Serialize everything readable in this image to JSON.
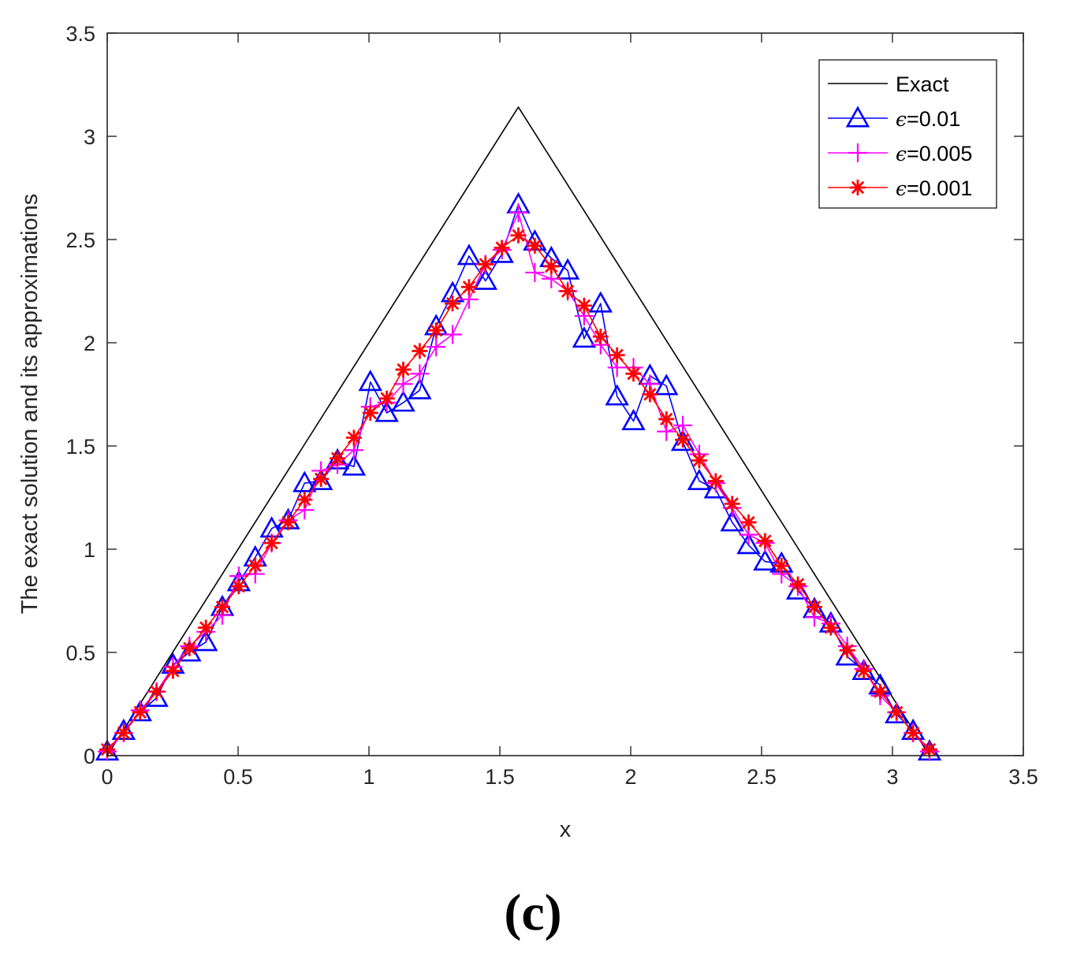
{
  "chart_data": {
    "type": "line",
    "xlabel": "x",
    "ylabel": "The exact solution and its approximations",
    "xlim": [
      0,
      3.5
    ],
    "ylim": [
      0,
      3.5
    ],
    "xticks": [
      "0",
      "0.5",
      "1",
      "1.5",
      "2",
      "2.5",
      "3",
      "3.5"
    ],
    "yticks": [
      "0",
      "0.5",
      "1",
      "1.5",
      "2",
      "2.5",
      "3",
      "3.5"
    ],
    "grid": false,
    "legend_position": "top-right",
    "panel_label": "(c)",
    "series": [
      {
        "name": "Exact",
        "color": "#000000",
        "marker": "none",
        "x": [
          0,
          1.5708,
          3.1416
        ],
        "y": [
          0,
          3.1416,
          0
        ]
      },
      {
        "name": "ϵ=0.01",
        "color": "#0000ff",
        "marker": "triangle",
        "x": [
          0,
          0.0628,
          0.1257,
          0.1885,
          0.2513,
          0.3142,
          0.377,
          0.4398,
          0.5027,
          0.5655,
          0.6283,
          0.6912,
          0.754,
          0.8168,
          0.8796,
          0.9425,
          1.0053,
          1.0681,
          1.131,
          1.1938,
          1.2566,
          1.3195,
          1.3823,
          1.4451,
          1.508,
          1.5708,
          1.6336,
          1.6965,
          1.7593,
          1.8221,
          1.885,
          1.9478,
          2.0106,
          2.0735,
          2.1363,
          2.1991,
          2.2619,
          2.3248,
          2.3876,
          2.4504,
          2.5133,
          2.5761,
          2.6389,
          2.7018,
          2.7646,
          2.8274,
          2.8903,
          2.9531,
          3.0159,
          3.0788,
          3.1416
        ],
        "y": [
          0.02,
          0.12,
          0.21,
          0.28,
          0.44,
          0.5,
          0.55,
          0.72,
          0.84,
          0.96,
          1.1,
          1.14,
          1.32,
          1.33,
          1.43,
          1.4,
          1.81,
          1.66,
          1.71,
          1.77,
          2.08,
          2.24,
          2.42,
          2.3,
          2.43,
          2.67,
          2.49,
          2.41,
          2.35,
          2.02,
          2.19,
          1.74,
          1.62,
          1.84,
          1.79,
          1.52,
          1.33,
          1.29,
          1.13,
          1.02,
          0.94,
          0.93,
          0.8,
          0.71,
          0.64,
          0.48,
          0.41,
          0.34,
          0.2,
          0.12,
          0.02
        ]
      },
      {
        "name": "ϵ=0.005",
        "color": "#ff00ff",
        "marker": "plus",
        "x": [
          0,
          0.0628,
          0.1257,
          0.1885,
          0.2513,
          0.3142,
          0.377,
          0.4398,
          0.5027,
          0.5655,
          0.6283,
          0.6912,
          0.754,
          0.8168,
          0.8796,
          0.9425,
          1.0053,
          1.0681,
          1.131,
          1.1938,
          1.2566,
          1.3195,
          1.3823,
          1.4451,
          1.508,
          1.5708,
          1.6336,
          1.6965,
          1.7593,
          1.8221,
          1.885,
          1.9478,
          2.0106,
          2.0735,
          2.1363,
          2.1991,
          2.2619,
          2.3248,
          2.3876,
          2.4504,
          2.5133,
          2.5761,
          2.6389,
          2.7018,
          2.7646,
          2.8274,
          2.8903,
          2.9531,
          3.0159,
          3.0788,
          3.1416
        ],
        "y": [
          0.02,
          0.11,
          0.22,
          0.31,
          0.43,
          0.53,
          0.6,
          0.68,
          0.87,
          0.88,
          1.03,
          1.14,
          1.19,
          1.38,
          1.41,
          1.48,
          1.69,
          1.71,
          1.8,
          1.85,
          1.98,
          2.04,
          2.21,
          2.38,
          2.45,
          2.63,
          2.34,
          2.31,
          2.25,
          2.13,
          1.99,
          1.88,
          1.88,
          1.8,
          1.57,
          1.6,
          1.46,
          1.32,
          1.2,
          1.07,
          1.03,
          0.88,
          0.82,
          0.67,
          0.64,
          0.53,
          0.42,
          0.29,
          0.21,
          0.11,
          0.02
        ]
      },
      {
        "name": "ϵ=0.001",
        "color": "#ff0000",
        "marker": "asterisk",
        "x": [
          0,
          0.0628,
          0.1257,
          0.1885,
          0.2513,
          0.3142,
          0.377,
          0.4398,
          0.5027,
          0.5655,
          0.6283,
          0.6912,
          0.754,
          0.8168,
          0.8796,
          0.9425,
          1.0053,
          1.0681,
          1.131,
          1.1938,
          1.2566,
          1.3195,
          1.3823,
          1.4451,
          1.508,
          1.5708,
          1.6336,
          1.6965,
          1.7593,
          1.8221,
          1.885,
          1.9478,
          2.0106,
          2.0735,
          2.1363,
          2.1991,
          2.2619,
          2.3248,
          2.3876,
          2.4504,
          2.5133,
          2.5761,
          2.6389,
          2.7018,
          2.7646,
          2.8274,
          2.8903,
          2.9531,
          3.0159,
          3.0788,
          3.1416
        ],
        "y": [
          0.03,
          0.11,
          0.21,
          0.31,
          0.41,
          0.52,
          0.62,
          0.72,
          0.82,
          0.92,
          1.03,
          1.13,
          1.24,
          1.34,
          1.44,
          1.54,
          1.66,
          1.73,
          1.87,
          1.96,
          2.06,
          2.19,
          2.27,
          2.38,
          2.46,
          2.52,
          2.47,
          2.37,
          2.25,
          2.18,
          2.03,
          1.94,
          1.85,
          1.75,
          1.63,
          1.53,
          1.43,
          1.33,
          1.22,
          1.13,
          1.04,
          0.92,
          0.83,
          0.72,
          0.62,
          0.51,
          0.41,
          0.31,
          0.21,
          0.11,
          0.03
        ]
      }
    ]
  }
}
